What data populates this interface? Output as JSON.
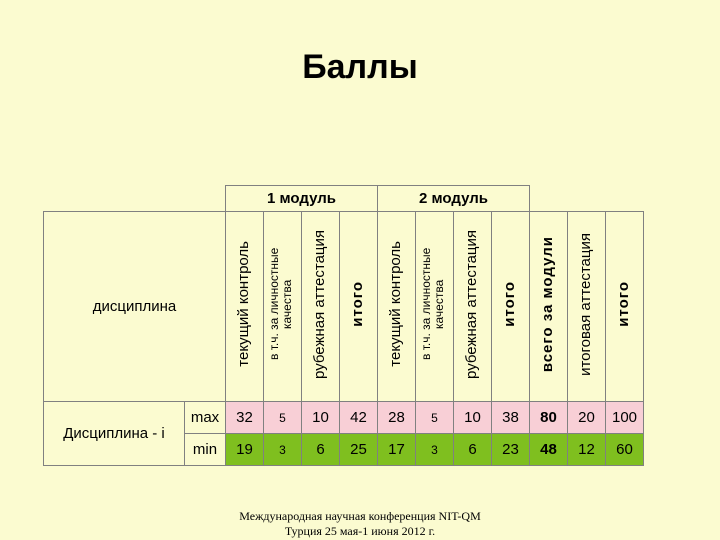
{
  "title": "Баллы",
  "table": {
    "group_headers": [
      "1 модуль",
      "2 модуль"
    ],
    "discipline_header": "дисциплина",
    "columns": [
      {
        "label": "текущий контроль"
      },
      {
        "label": "в т.ч. за личностные качества"
      },
      {
        "label": "рубежная аттестация"
      },
      {
        "label": "итого"
      },
      {
        "label": "текущий контроль"
      },
      {
        "label": "в т.ч. за личностные качества"
      },
      {
        "label": "рубежная аттестация"
      },
      {
        "label": "итого"
      },
      {
        "label": "всего за модули"
      },
      {
        "label": "итоговая аттестация"
      },
      {
        "label": "итого"
      }
    ],
    "row_label": "Дисциплина - i",
    "rows": [
      {
        "label": "max",
        "values": [
          "32",
          "5",
          "10",
          "42",
          "28",
          "5",
          "10",
          "38",
          "80",
          "20",
          "100"
        ]
      },
      {
        "label": "min",
        "values": [
          "19",
          "3",
          "6",
          "25",
          "17",
          "3",
          "6",
          "23",
          "48",
          "12",
          "60"
        ]
      }
    ]
  },
  "footer": {
    "line1": "Международная научная конференция NIT-QM",
    "line2": "Турция 25 мая-1 июня 2012 г."
  },
  "colors": {
    "background": "#fbfbd0",
    "max_row": "#f8cfd6",
    "min_row": "#7fbf1f"
  }
}
